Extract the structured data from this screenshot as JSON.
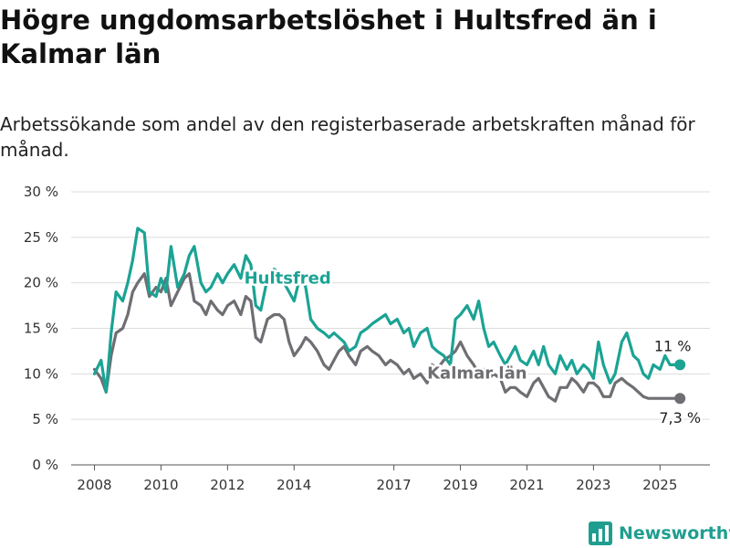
{
  "header": {
    "title": "Högre ungdomsarbetslöshet i Hultsfred än i Kalmar län",
    "subtitle": "Arbetssökande som andel av den registerbaserade arbetskraften månad för månad."
  },
  "brand": {
    "name": "Newsworthy",
    "color": "#1f9e8f",
    "icon": "bar-chart-logo-icon"
  },
  "chart_data": {
    "type": "line",
    "title": "Högre ungdomsarbetslöshet i Hultsfred än i Kalmar län",
    "subtitle": "Arbetssökande som andel av den registerbaserade arbetskraften månad för månad.",
    "xlabel": "",
    "ylabel": "",
    "ylim": [
      0,
      30
    ],
    "xlim": [
      2007.3,
      2026.5
    ],
    "yticks": [
      0,
      5,
      10,
      15,
      20,
      25,
      30
    ],
    "ytick_labels": [
      "0 %",
      "5 %",
      "10 %",
      "15 %",
      "20 %",
      "25 %",
      "30 %"
    ],
    "xticks": [
      2008,
      2010,
      2012,
      2014,
      2017,
      2019,
      2021,
      2023,
      2025
    ],
    "xtick_labels": [
      "2008",
      "2010",
      "2012",
      "2014",
      "2017",
      "2019",
      "2021",
      "2023",
      "2025"
    ],
    "grid": "horizontal",
    "legend": "direct labels",
    "series": [
      {
        "name": "Hultsfred",
        "color": "#1ba394",
        "end_label": "11 %",
        "x": [
          2008.0,
          2008.2,
          2008.35,
          2008.5,
          2008.65,
          2008.85,
          2009.0,
          2009.15,
          2009.3,
          2009.5,
          2009.65,
          2009.85,
          2010.0,
          2010.15,
          2010.3,
          2010.5,
          2010.7,
          2010.85,
          2011.0,
          2011.2,
          2011.35,
          2011.5,
          2011.7,
          2011.85,
          2012.0,
          2012.2,
          2012.4,
          2012.55,
          2012.7,
          2012.85,
          2013.0,
          2013.2,
          2013.4,
          2013.55,
          2013.7,
          2013.85,
          2014.0,
          2014.2,
          2014.35,
          2014.5,
          2014.7,
          2014.9,
          2015.05,
          2015.2,
          2015.35,
          2015.5,
          2015.65,
          2015.85,
          2016.0,
          2016.2,
          2016.35,
          2016.55,
          2016.75,
          2016.9,
          2017.1,
          2017.3,
          2017.45,
          2017.6,
          2017.8,
          2018.0,
          2018.15,
          2018.3,
          2018.5,
          2018.7,
          2018.85,
          2019.0,
          2019.2,
          2019.4,
          2019.55,
          2019.7,
          2019.85,
          2020.0,
          2020.2,
          2020.35,
          2020.5,
          2020.65,
          2020.8,
          2021.0,
          2021.2,
          2021.35,
          2021.5,
          2021.65,
          2021.85,
          2022.0,
          2022.2,
          2022.35,
          2022.5,
          2022.7,
          2022.85,
          2023.0,
          2023.15,
          2023.3,
          2023.5,
          2023.65,
          2023.85,
          2024.0,
          2024.2,
          2024.35,
          2024.5,
          2024.65,
          2024.8,
          2025.0,
          2025.15,
          2025.3,
          2025.45,
          2025.6
        ],
        "values": [
          10.0,
          11.5,
          8.0,
          14.5,
          19.0,
          18.0,
          20.0,
          22.5,
          26.0,
          25.5,
          19.0,
          18.5,
          20.5,
          19.0,
          24.0,
          19.5,
          21.0,
          23.0,
          24.0,
          20.0,
          19.0,
          19.5,
          21.0,
          20.0,
          21.0,
          22.0,
          20.5,
          23.0,
          22.0,
          17.5,
          17.0,
          20.5,
          21.5,
          21.0,
          20.0,
          19.0,
          18.0,
          21.0,
          19.5,
          16.0,
          15.0,
          14.5,
          14.0,
          14.5,
          14.0,
          13.5,
          12.5,
          13.0,
          14.5,
          15.0,
          15.5,
          16.0,
          16.5,
          15.5,
          16.0,
          14.5,
          15.0,
          13.0,
          14.5,
          15.0,
          13.0,
          12.5,
          12.0,
          11.0,
          16.0,
          16.5,
          17.5,
          16.0,
          18.0,
          15.0,
          13.0,
          13.5,
          12.0,
          11.0,
          12.0,
          13.0,
          11.5,
          11.0,
          12.5,
          11.0,
          13.0,
          11.0,
          10.0,
          12.0,
          10.5,
          11.5,
          10.0,
          11.0,
          10.5,
          9.5,
          13.5,
          11.0,
          9.0,
          10.0,
          13.5,
          14.5,
          12.0,
          11.5,
          10.0,
          9.5,
          11.0,
          10.5,
          12.0,
          11.0,
          11.0,
          11.0
        ]
      },
      {
        "name": "Kalmar län",
        "color": "#6e6e73",
        "end_label": "7,3 %",
        "x": [
          2008.0,
          2008.2,
          2008.35,
          2008.5,
          2008.65,
          2008.85,
          2009.0,
          2009.15,
          2009.3,
          2009.5,
          2009.65,
          2009.85,
          2010.0,
          2010.15,
          2010.3,
          2010.5,
          2010.7,
          2010.85,
          2011.0,
          2011.2,
          2011.35,
          2011.5,
          2011.7,
          2011.85,
          2012.0,
          2012.2,
          2012.4,
          2012.55,
          2012.7,
          2012.85,
          2013.0,
          2013.2,
          2013.4,
          2013.55,
          2013.7,
          2013.85,
          2014.0,
          2014.2,
          2014.35,
          2014.5,
          2014.7,
          2014.9,
          2015.05,
          2015.2,
          2015.35,
          2015.5,
          2015.65,
          2015.85,
          2016.0,
          2016.2,
          2016.35,
          2016.55,
          2016.75,
          2016.9,
          2017.1,
          2017.3,
          2017.45,
          2017.6,
          2017.8,
          2018.0,
          2018.15,
          2018.3,
          2018.5,
          2018.7,
          2018.85,
          2019.0,
          2019.2,
          2019.4,
          2019.55,
          2019.7,
          2019.85,
          2020.0,
          2020.2,
          2020.35,
          2020.5,
          2020.65,
          2020.8,
          2021.0,
          2021.2,
          2021.35,
          2021.5,
          2021.65,
          2021.85,
          2022.0,
          2022.2,
          2022.35,
          2022.5,
          2022.7,
          2022.85,
          2023.0,
          2023.15,
          2023.3,
          2023.5,
          2023.65,
          2023.85,
          2024.0,
          2024.2,
          2024.35,
          2024.5,
          2024.65,
          2024.8,
          2025.0,
          2025.15,
          2025.3,
          2025.45,
          2025.6
        ],
        "values": [
          10.5,
          9.5,
          8.0,
          12.0,
          14.5,
          15.0,
          16.5,
          19.0,
          20.0,
          21.0,
          18.5,
          19.5,
          19.0,
          20.5,
          17.5,
          19.0,
          20.5,
          21.0,
          18.0,
          17.5,
          16.5,
          18.0,
          17.0,
          16.5,
          17.5,
          18.0,
          16.5,
          18.5,
          18.0,
          14.0,
          13.5,
          16.0,
          16.5,
          16.5,
          16.0,
          13.5,
          12.0,
          13.0,
          14.0,
          13.5,
          12.5,
          11.0,
          10.5,
          11.5,
          12.5,
          13.0,
          12.0,
          11.0,
          12.5,
          13.0,
          12.5,
          12.0,
          11.0,
          11.5,
          11.0,
          10.0,
          10.5,
          9.5,
          10.0,
          9.0,
          11.0,
          10.5,
          11.5,
          12.0,
          12.5,
          13.5,
          12.0,
          11.0,
          10.0,
          10.5,
          9.5,
          10.0,
          9.5,
          8.0,
          8.5,
          8.5,
          8.0,
          7.5,
          9.0,
          9.5,
          8.5,
          7.5,
          7.0,
          8.5,
          8.5,
          9.5,
          9.0,
          8.0,
          9.0,
          9.0,
          8.5,
          7.5,
          7.5,
          9.0,
          9.5,
          9.0,
          8.5,
          8.0,
          7.5,
          7.3,
          7.3,
          7.3,
          7.3,
          7.3,
          7.3,
          7.3
        ]
      }
    ],
    "annotations": [
      {
        "series": "Hultsfred",
        "text": "Hultsfred"
      },
      {
        "series": "Kalmar län",
        "text": "Kalmar län"
      }
    ]
  }
}
